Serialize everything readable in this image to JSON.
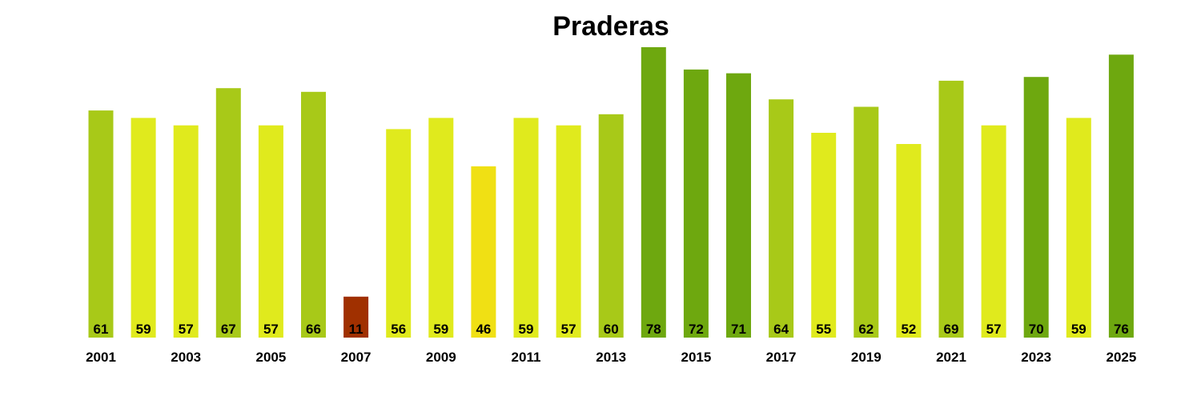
{
  "chart_data": {
    "type": "bar",
    "title": "Praderas",
    "xlabel": "",
    "ylabel": "",
    "ylim": [
      0,
      78
    ],
    "grid": false,
    "legend": "none",
    "categories": [
      "2001",
      "2002",
      "2003",
      "2004",
      "2005",
      "2006",
      "2007",
      "2008",
      "2009",
      "2010",
      "2011",
      "2012",
      "2013",
      "2014",
      "2015",
      "2016",
      "2017",
      "2018",
      "2019",
      "2020",
      "2021",
      "2022",
      "2023",
      "2024",
      "2025"
    ],
    "tick_labels": [
      "2001",
      "2003",
      "2005",
      "2007",
      "2009",
      "2011",
      "2013",
      "2015",
      "2017",
      "2019",
      "2021",
      "2023",
      "2025"
    ],
    "values": [
      61,
      59,
      57,
      67,
      57,
      66,
      11,
      56,
      59,
      46,
      59,
      57,
      60,
      78,
      72,
      71,
      64,
      55,
      62,
      52,
      69,
      57,
      70,
      59,
      76
    ],
    "colors": {
      "high": "#6ea80f",
      "mid_high": "#a8c918",
      "mid": "#e0ea1d",
      "low": "#f0e014",
      "very_low": "#a03000"
    }
  }
}
